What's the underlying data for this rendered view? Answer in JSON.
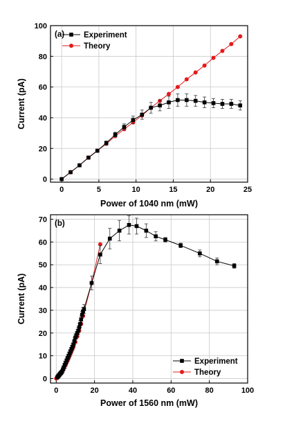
{
  "chart_data": [
    {
      "type": "line",
      "panel_label": "(a)",
      "xlabel": "Power of 1040 nm (mW)",
      "ylabel": "Current (pA)",
      "xlim": [
        -1.5,
        25
      ],
      "ylim": [
        -2,
        100
      ],
      "xticks": [
        0,
        5,
        10,
        15,
        20,
        25
      ],
      "yticks": [
        0,
        20,
        40,
        60,
        80,
        100
      ],
      "grid": true,
      "legend_position": "top-left",
      "series": [
        {
          "name": "Experiment",
          "color": "#000000",
          "marker": "square",
          "x": [
            0,
            1.2,
            2.4,
            3.6,
            4.8,
            6.0,
            7.2,
            8.4,
            9.6,
            10.8,
            12.0,
            13.2,
            14.4,
            15.6,
            16.8,
            18.0,
            19.2,
            20.4,
            21.6,
            22.8,
            24.0
          ],
          "y": [
            0,
            4.5,
            9,
            14,
            18.5,
            23.5,
            29,
            34,
            38.5,
            42,
            46.5,
            48,
            50,
            51.5,
            51.5,
            51,
            50,
            49.5,
            49,
            49,
            48
          ],
          "err": [
            0.5,
            0.5,
            0.7,
            0.9,
            1.0,
            1.3,
            1.5,
            2.0,
            2.5,
            3.0,
            3.5,
            3.5,
            4.0,
            4.0,
            4.0,
            3.5,
            3.5,
            3.0,
            3.0,
            3.0,
            3.0
          ]
        },
        {
          "name": "Theory",
          "color": "#e41a1c",
          "marker": "circle",
          "x": [
            0,
            1.2,
            2.4,
            3.6,
            4.8,
            6.0,
            7.2,
            8.4,
            9.6,
            10.8,
            12.0,
            13.2,
            14.4,
            15.6,
            16.8,
            18.0,
            19.2,
            20.4,
            21.6,
            22.8,
            24.0
          ],
          "y": [
            0,
            4.5,
            9,
            14,
            18.5,
            23,
            28,
            32.5,
            37,
            41.5,
            46.5,
            51,
            55.5,
            60,
            65,
            69.5,
            74,
            79,
            83.5,
            88,
            93
          ]
        }
      ]
    },
    {
      "type": "line",
      "panel_label": "(b)",
      "xlabel": "Power of 1560 nm (mW)",
      "ylabel": "Current (pA)",
      "xlim": [
        -3,
        100
      ],
      "ylim": [
        -2,
        72
      ],
      "xticks": [
        0,
        20,
        40,
        60,
        80,
        100
      ],
      "yticks": [
        0,
        10,
        20,
        30,
        40,
        50,
        60,
        70
      ],
      "grid": true,
      "legend_position": "bottom-right",
      "series": [
        {
          "name": "Experiment",
          "color": "#000000",
          "marker": "square",
          "x": [
            0.5,
            1,
            1.5,
            2,
            2.5,
            3,
            3.5,
            4,
            4.5,
            5,
            5.5,
            6,
            6.5,
            7,
            7.5,
            8,
            8.5,
            9,
            9.5,
            10,
            10.5,
            11,
            11.5,
            12,
            12.5,
            13,
            13.5,
            14,
            14.5,
            18.5,
            23,
            28,
            33,
            38,
            42,
            47,
            52,
            57,
            65,
            75,
            84,
            93
          ],
          "y": [
            0.5,
            1,
            1.5,
            2,
            2.5,
            3,
            4,
            5,
            6,
            7,
            8,
            9,
            10,
            11,
            12,
            13,
            14,
            15,
            16.5,
            18,
            19,
            20,
            21,
            22.5,
            24,
            26,
            28,
            29.5,
            30.5,
            42,
            54.5,
            61.5,
            65,
            67.5,
            67,
            65,
            62.5,
            61,
            58.5,
            55,
            51.5,
            49.5
          ],
          "err": [
            0.8,
            1,
            1,
            1,
            1,
            1,
            1.2,
            1.5,
            1.5,
            1.5,
            1.5,
            1.5,
            1.5,
            1.5,
            1.5,
            1.5,
            1.5,
            1.5,
            1.5,
            1.5,
            1.5,
            1.5,
            1.5,
            1.5,
            1.5,
            1.5,
            1.5,
            1.8,
            2,
            3,
            4,
            4.5,
            4.5,
            4,
            3.5,
            3,
            2,
            1,
            1,
            1.5,
            1.5,
            1
          ]
        },
        {
          "name": "Theory",
          "color": "#e41a1c",
          "marker": "circle",
          "x": [
            0,
            0.5,
            1,
            1.5,
            2,
            2.5,
            3,
            3.5,
            4,
            4.5,
            5,
            5.5,
            6,
            6.5,
            7,
            7.5,
            8,
            8.5,
            9,
            10,
            11,
            12,
            13,
            14,
            18.5,
            23
          ],
          "y": [
            0,
            0.3,
            0.8,
            1.3,
            2,
            2.5,
            3,
            3.8,
            4.5,
            5.5,
            6.3,
            7.2,
            8,
            9,
            10,
            11,
            12,
            13,
            14,
            16,
            18.5,
            21,
            24,
            27.5,
            42,
            59
          ]
        }
      ]
    }
  ]
}
